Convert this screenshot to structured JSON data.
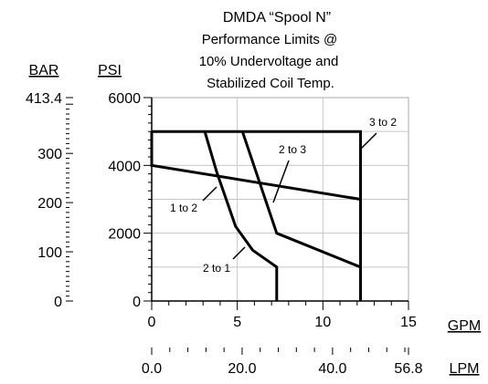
{
  "chart_data": {
    "type": "line",
    "title": "DMDA “Spool N”",
    "subtitle_lines": [
      "Performance Limits @",
      "10% Undervoltage and",
      "Stabilized Coil Temp."
    ],
    "x_unit": "GPM",
    "x2_unit": "LPM",
    "y_unit": "PSI",
    "y2_unit": "BAR",
    "xlim": [
      0,
      15
    ],
    "ylim": [
      0,
      6000
    ],
    "x_ticks": [
      "0",
      "5",
      "10",
      "15"
    ],
    "x2_ticks": [
      "0.0",
      "20.0",
      "40.0",
      "56.8"
    ],
    "y_ticks": [
      "0",
      "2000",
      "4000",
      "6000"
    ],
    "y2_ticks": [
      "0",
      "100",
      "200",
      "300",
      "413.4"
    ],
    "grid": true,
    "series": [
      {
        "name": "3 to 2",
        "points": [
          [
            0,
            5000
          ],
          [
            12.2,
            5000
          ],
          [
            12.2,
            0
          ]
        ]
      },
      {
        "name": "1 to 2",
        "points": [
          [
            0,
            5000
          ],
          [
            0,
            4000
          ],
          [
            12.2,
            3000
          ]
        ]
      },
      {
        "name": "2 to 3",
        "points": [
          [
            5.3,
            5000
          ],
          [
            6.1,
            3800
          ],
          [
            7.3,
            2000
          ],
          [
            12.2,
            1000
          ]
        ]
      },
      {
        "name": "2 to 1",
        "points": [
          [
            3.1,
            5000
          ],
          [
            3.8,
            3800
          ],
          [
            4.9,
            2200
          ],
          [
            5.9,
            1500
          ],
          [
            7.3,
            1000
          ],
          [
            7.3,
            0
          ]
        ]
      }
    ]
  }
}
